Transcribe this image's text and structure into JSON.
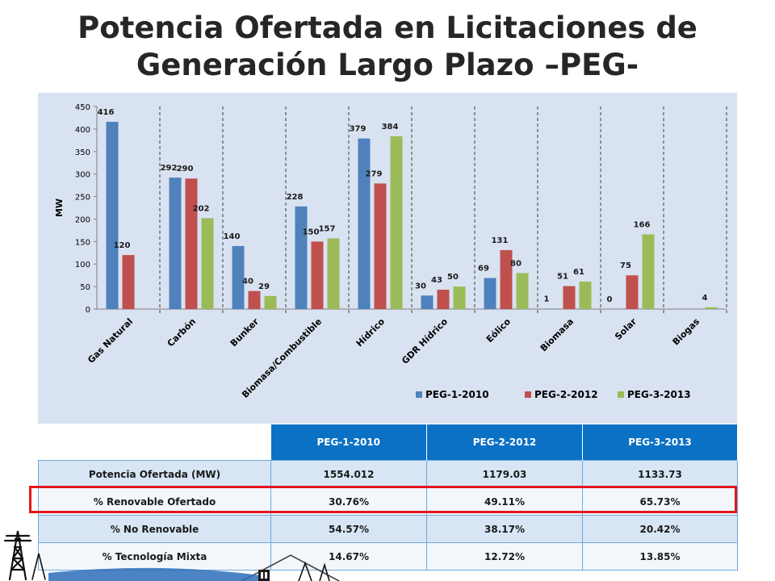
{
  "page": {
    "title_line1": "Potencia Ofertada en Licitaciones de",
    "title_line2": "Generación Largo Plazo –PEG-"
  },
  "colors": {
    "panel": "#d9e2f1",
    "series": [
      "#4f81bd",
      "#c0504d",
      "#9bbb59"
    ],
    "table_header": "#0b71c4",
    "highlight": "#e3151c"
  },
  "chart_data": {
    "type": "bar",
    "categories": [
      "Gas Natural",
      "Carbón",
      "Bunker",
      "Biomasa/Combustible",
      "Hídrico",
      "GDR Hídrico",
      "Eólico",
      "Biomasa",
      "Solar",
      "Biogas"
    ],
    "series": [
      {
        "name": "PEG-1-2010",
        "values": [
          416,
          292,
          140,
          228,
          379,
          30,
          69,
          1,
          0,
          null
        ]
      },
      {
        "name": "PEG-2-2012",
        "values": [
          120,
          290,
          40,
          150,
          279,
          43,
          131,
          51,
          75,
          null
        ]
      },
      {
        "name": "PEG-3-2013",
        "values": [
          null,
          202,
          29,
          157,
          384,
          50,
          80,
          61,
          166,
          4
        ]
      }
    ],
    "ylabel": "MW",
    "ylim": [
      0,
      450
    ],
    "yticks": [
      0,
      50,
      100,
      150,
      200,
      250,
      300,
      350,
      400,
      450
    ],
    "legend_position": "bottom-right",
    "grid": "vertical-dashed-category-separators"
  },
  "table": {
    "headers": [
      "",
      "PEG-1-2010",
      "PEG-2-2012",
      "PEG-3-2013"
    ],
    "rows": [
      [
        "Potencia Ofertada (MW)",
        "1554.012",
        "1179.03",
        "1133.73"
      ],
      [
        "% Renovable Ofertado",
        "30.76%",
        "49.11%",
        "65.73%"
      ],
      [
        "% No Renovable",
        "54.57%",
        "38.17%",
        "20.42%"
      ],
      [
        "% Tecnología Mixta",
        "14.67%",
        "12.72%",
        "13.85%"
      ]
    ],
    "highlighted_row": 1
  },
  "logo": {
    "icon": "power-tower-logo-icon"
  }
}
